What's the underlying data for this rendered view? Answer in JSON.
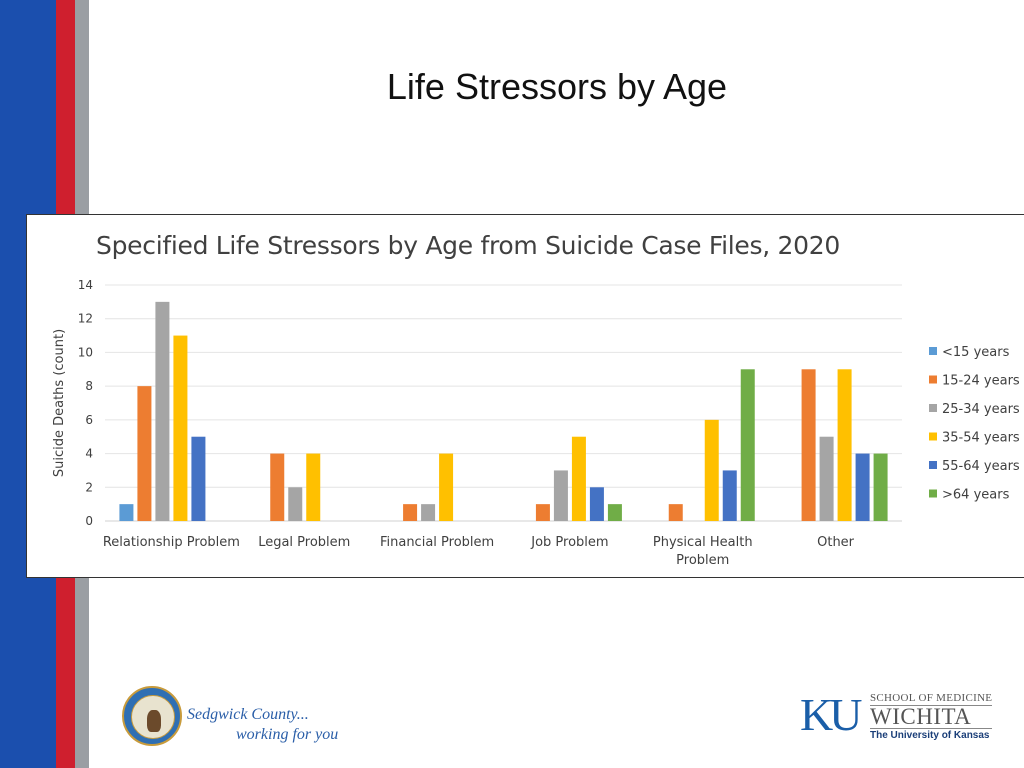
{
  "slide": {
    "title": "Life Stressors by Age"
  },
  "footer": {
    "sedgwick_line1": "Sedgwick County...",
    "sedgwick_line2": "working for you",
    "seal_text": "SEDGWICK COUNTY KANSAS",
    "ku_mark": "KU",
    "ku_school": "SCHOOL OF MEDICINE",
    "ku_city": "WICHITA",
    "ku_university": "The University of Kansas"
  },
  "colors": {
    "stripe_blue": "#1b4fae",
    "stripe_red": "#cf1f2e",
    "stripe_gray": "#9a9ea3"
  },
  "chart_data": {
    "type": "bar",
    "title": "Specified Life Stressors by Age from Suicide Case Files, 2020",
    "xlabel": "",
    "ylabel": "Suicide Deaths (count)",
    "ylim": [
      0,
      14
    ],
    "yticks": [
      0,
      2,
      4,
      6,
      8,
      10,
      12,
      14
    ],
    "grid": true,
    "legend_position": "right",
    "categories": [
      [
        "Relationship Problem"
      ],
      [
        "Legal Problem"
      ],
      [
        "Financial Problem"
      ],
      [
        "Job Problem"
      ],
      [
        "Physical Health",
        "Problem"
      ],
      [
        "Other"
      ]
    ],
    "series": [
      {
        "name": "<15 years",
        "color": "#5b9bd5",
        "values": [
          1,
          0,
          0,
          0,
          0,
          0
        ]
      },
      {
        "name": "15-24 years",
        "color": "#ed7d31",
        "values": [
          8,
          4,
          1,
          1,
          1,
          9
        ]
      },
      {
        "name": "25-34 years",
        "color": "#a5a5a5",
        "values": [
          13,
          2,
          1,
          3,
          0,
          5
        ]
      },
      {
        "name": "35-54 years",
        "color": "#ffc000",
        "values": [
          11,
          4,
          4,
          5,
          6,
          9
        ]
      },
      {
        "name": "55-64 years",
        "color": "#4472c4",
        "values": [
          5,
          0,
          0,
          2,
          3,
          4
        ]
      },
      {
        "name": ">64 years",
        "color": "#70ad47",
        "values": [
          0,
          0,
          0,
          1,
          9,
          4
        ]
      }
    ]
  }
}
